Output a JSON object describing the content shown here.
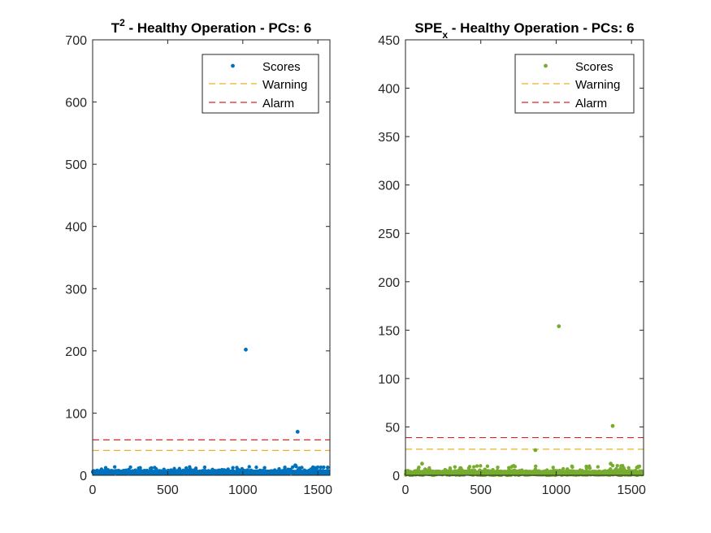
{
  "chart_data": [
    {
      "type": "scatter",
      "title": {
        "main": "T",
        "sup": "2",
        "rest": " - Healthy Operation - PCs: 6"
      },
      "xlim": [
        0,
        1580
      ],
      "ylim": [
        0,
        700
      ],
      "xticks": [
        0,
        500,
        1000,
        1500
      ],
      "yticks": [
        0,
        100,
        200,
        300,
        400,
        500,
        600,
        700
      ],
      "grid": false,
      "legend_position": "top-right",
      "legend": [
        "Scores",
        "Warning",
        "Alarm"
      ],
      "scores_color": "#0072BD",
      "warning": 40,
      "warning_color": "#EDB120",
      "alarm": 57,
      "alarm_color": "#D9262B",
      "n_points": 1570,
      "baseline_range": [
        2,
        14
      ],
      "outliers": [
        {
          "x": 1020,
          "y": 202
        },
        {
          "x": 1365,
          "y": 70
        },
        {
          "x": 1350,
          "y": 16
        }
      ]
    },
    {
      "type": "scatter",
      "title": {
        "main": "SPE",
        "sub": "x",
        "rest": " - Healthy Operation - PCs: 6"
      },
      "xlim": [
        0,
        1580
      ],
      "ylim": [
        0,
        450
      ],
      "xticks": [
        0,
        500,
        1000,
        1500
      ],
      "yticks": [
        0,
        50,
        100,
        150,
        200,
        250,
        300,
        350,
        400,
        450
      ],
      "grid": false,
      "legend_position": "top-right",
      "legend": [
        "Scores",
        "Warning",
        "Alarm"
      ],
      "scores_color": "#77AC30",
      "warning": 27,
      "warning_color": "#EDB120",
      "alarm": 39,
      "alarm_color": "#D9262B",
      "n_points": 1570,
      "baseline_range": [
        0,
        10
      ],
      "outliers": [
        {
          "x": 1018,
          "y": 154
        },
        {
          "x": 1375,
          "y": 51
        },
        {
          "x": 862,
          "y": 26
        },
        {
          "x": 110,
          "y": 12
        },
        {
          "x": 1362,
          "y": 12
        }
      ]
    }
  ]
}
